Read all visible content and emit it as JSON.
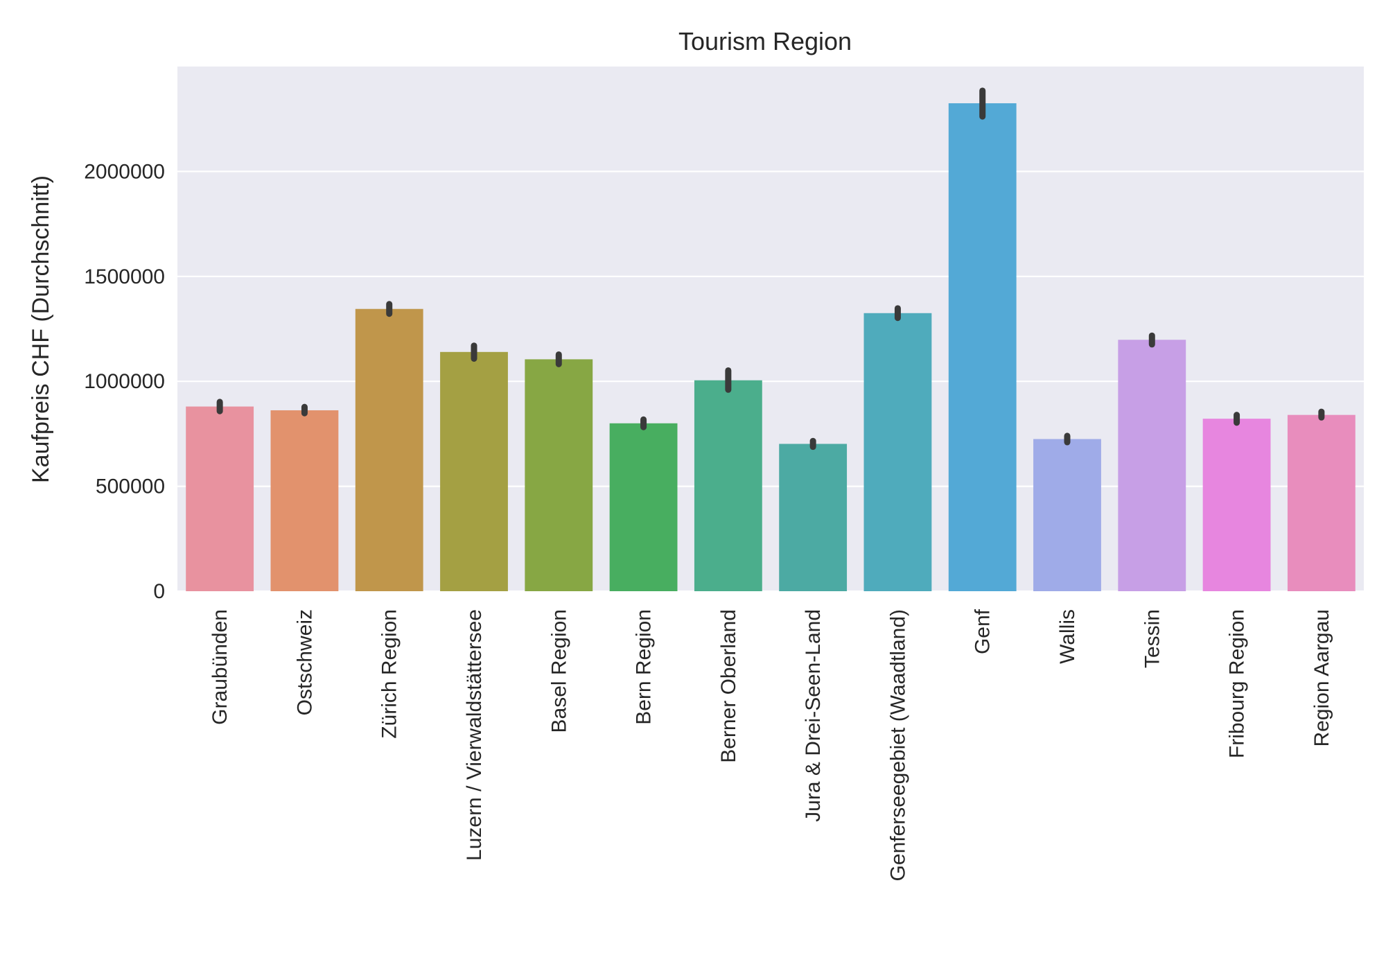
{
  "chart_data": {
    "type": "bar",
    "title": "Tourism Region",
    "xlabel": "",
    "ylabel": "Kaufpreis CHF (Durchschnitt)",
    "ylim": [
      0,
      2500000
    ],
    "yticks": [
      0,
      500000,
      1000000,
      1500000,
      2000000
    ],
    "ytick_labels": [
      "0",
      "500000",
      "1000000",
      "1500000",
      "2000000"
    ],
    "grid": true,
    "legend": "none",
    "categories": [
      "Graubünden",
      "Ostschweiz",
      "Zürich Region",
      "Luzern / Vierwaldstättersee",
      "Basel Region",
      "Bern Region",
      "Berner Oberland",
      "Jura & Drei-Seen-Land",
      "Genferseegebiet (Waadtland)",
      "Genf",
      "Wallis",
      "Tessin",
      "Fribourg Region",
      "Region Aargau"
    ],
    "values": [
      880000,
      862000,
      1345000,
      1140000,
      1105000,
      800000,
      1005000,
      702000,
      1325000,
      2325000,
      725000,
      1198000,
      822000,
      840000
    ],
    "error_low": [
      858000,
      848000,
      1322000,
      1108000,
      1082000,
      782000,
      960000,
      688000,
      1302000,
      2262000,
      710000,
      1176000,
      803000,
      828000
    ],
    "error_high": [
      902000,
      878000,
      1368000,
      1170000,
      1128000,
      818000,
      1052000,
      716000,
      1348000,
      2385000,
      740000,
      1218000,
      840000,
      855000
    ],
    "colors": [
      "#e8929f",
      "#e2926d",
      "#c0964b",
      "#a4a043",
      "#87a744",
      "#48ae60",
      "#4bae8c",
      "#4caaa3",
      "#4fabbc",
      "#53a9d6",
      "#9fabe8",
      "#c79fe6",
      "#e786df",
      "#e88dbd"
    ],
    "plot_background": "#eaeaf2",
    "grid_color": "#ffffff",
    "errorbar_color": "#3a3a3a"
  }
}
